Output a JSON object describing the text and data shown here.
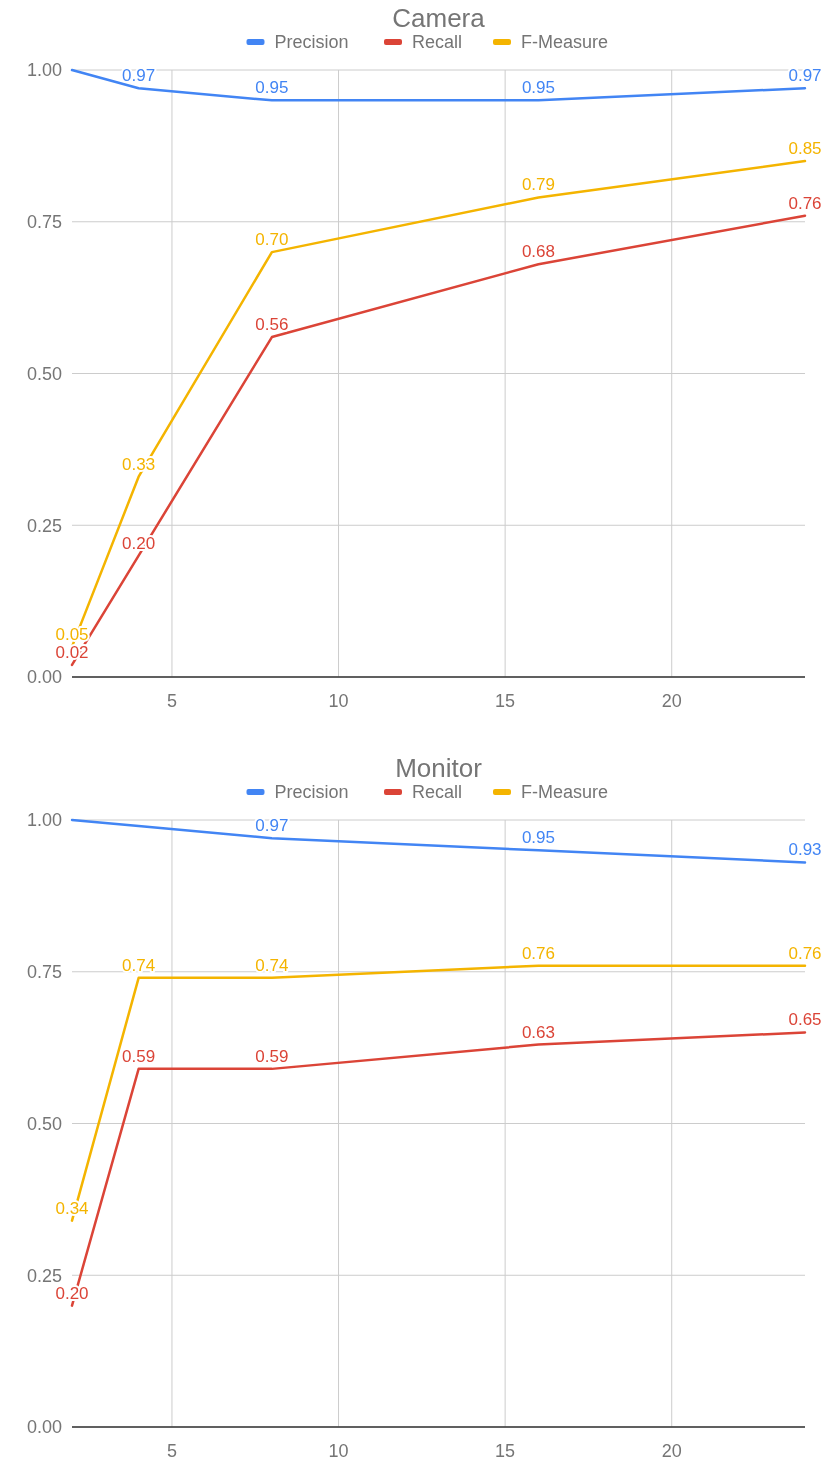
{
  "chart_data": [
    {
      "type": "line",
      "title": "Camera",
      "x": [
        2,
        4,
        8,
        16,
        24
      ],
      "xlim": [
        2,
        24
      ],
      "xticks": [
        5,
        10,
        15,
        20
      ],
      "ylim": [
        0,
        1
      ],
      "yticks": [
        {
          "value": 0,
          "label": "0.00"
        },
        {
          "value": 0.25,
          "label": "0.25"
        },
        {
          "value": 0.5,
          "label": "0.50"
        },
        {
          "value": 0.75,
          "label": "0.75"
        },
        {
          "value": 1,
          "label": "1.00"
        }
      ],
      "grid": true,
      "legend": "top",
      "marker": "none",
      "series": [
        {
          "name": "Precision",
          "color": "#4285f4",
          "values": [
            1.0,
            0.97,
            0.95,
            0.95,
            0.97
          ],
          "value_labels": [
            null,
            "0.97",
            "0.95",
            "0.95",
            "0.97"
          ]
        },
        {
          "name": "Recall",
          "color": "#db4437",
          "values": [
            0.02,
            0.2,
            0.56,
            0.68,
            0.76
          ],
          "value_labels": [
            "0.02",
            "0.20",
            "0.56",
            "0.68",
            "0.76"
          ]
        },
        {
          "name": "F-Measure",
          "color": "#f4b400",
          "values": [
            0.05,
            0.33,
            0.7,
            0.79,
            0.85
          ],
          "value_labels": [
            "0.05",
            "0.33",
            "0.70",
            "0.79",
            "0.85"
          ]
        }
      ]
    },
    {
      "type": "line",
      "title": "Monitor",
      "x": [
        2,
        4,
        8,
        16,
        24
      ],
      "xlim": [
        2,
        24
      ],
      "xticks": [
        5,
        10,
        15,
        20
      ],
      "ylim": [
        0,
        1
      ],
      "yticks": [
        {
          "value": 0,
          "label": "0.00"
        },
        {
          "value": 0.25,
          "label": "0.25"
        },
        {
          "value": 0.5,
          "label": "0.50"
        },
        {
          "value": 0.75,
          "label": "0.75"
        },
        {
          "value": 1,
          "label": "1.00"
        }
      ],
      "grid": true,
      "legend": "top",
      "marker": "none",
      "series": [
        {
          "name": "Precision",
          "color": "#4285f4",
          "values": [
            1.0,
            0.99,
            0.97,
            0.95,
            0.93
          ],
          "value_labels": [
            null,
            null,
            "0.97",
            "0.95",
            "0.93"
          ]
        },
        {
          "name": "Recall",
          "color": "#db4437",
          "values": [
            0.2,
            0.59,
            0.59,
            0.63,
            0.65
          ],
          "value_labels": [
            "0.20",
            "0.59",
            "0.59",
            "0.63",
            "0.65"
          ]
        },
        {
          "name": "F-Measure",
          "color": "#f4b400",
          "values": [
            0.34,
            0.74,
            0.74,
            0.76,
            0.76
          ],
          "value_labels": [
            "0.34",
            "0.74",
            "0.74",
            "0.76",
            "0.76"
          ]
        }
      ]
    }
  ]
}
